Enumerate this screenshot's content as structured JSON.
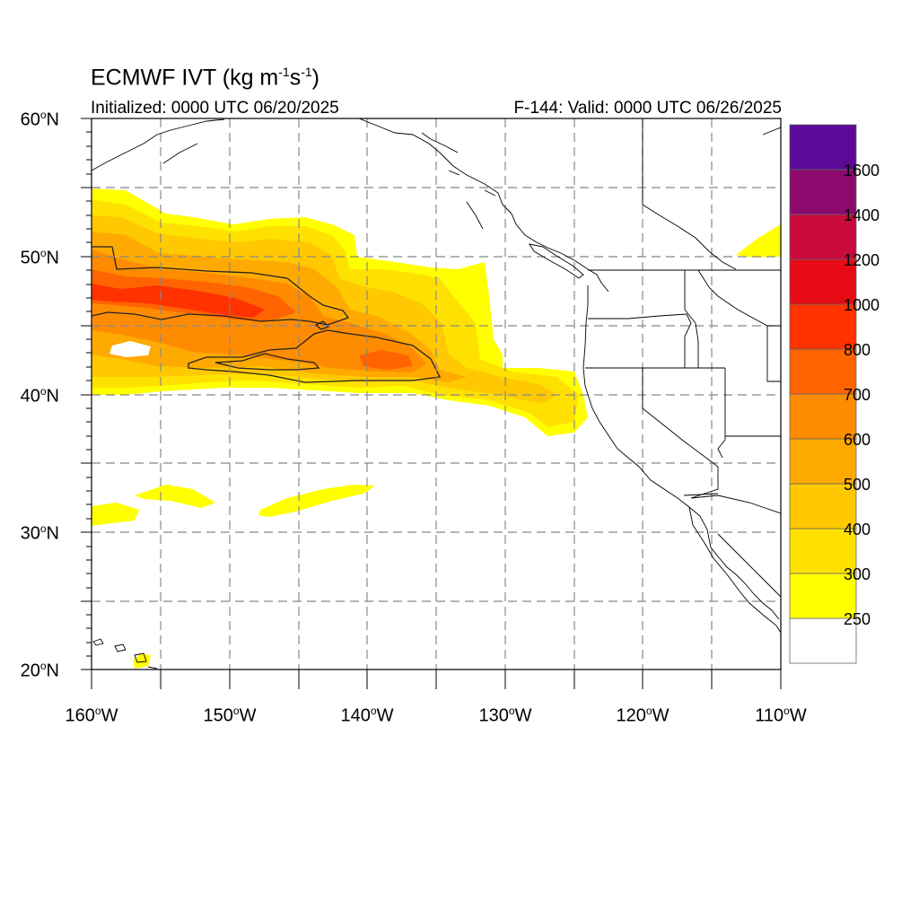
{
  "title": {
    "main": "ECMWF IVT (kg m",
    "exp1": "-1",
    "mid": "s",
    "exp2": "-1",
    "end": ")"
  },
  "subtitle": {
    "initialized": "Initialized: 0000 UTC 06/20/2025",
    "valid": "F-144: Valid: 0000 UTC 06/26/2025"
  },
  "map": {
    "extent": {
      "lon_min": -160,
      "lon_max": -110,
      "lat_min": 20,
      "lat_max": 60
    },
    "lat_labels": [
      {
        "lat": 60,
        "num": "60",
        "deg": "o",
        "hemi": "N"
      },
      {
        "lat": 50,
        "num": "50",
        "deg": "o",
        "hemi": "N"
      },
      {
        "lat": 40,
        "num": "40",
        "deg": "o",
        "hemi": "N"
      },
      {
        "lat": 30,
        "num": "30",
        "deg": "o",
        "hemi": "N"
      },
      {
        "lat": 20,
        "num": "20",
        "deg": "o",
        "hemi": "N"
      }
    ],
    "lon_labels": [
      {
        "lon": -160,
        "num": "160",
        "deg": "o",
        "hemi": "W"
      },
      {
        "lon": -150,
        "num": "150",
        "deg": "o",
        "hemi": "W"
      },
      {
        "lon": -140,
        "num": "140",
        "deg": "o",
        "hemi": "W"
      },
      {
        "lon": -130,
        "num": "130",
        "deg": "o",
        "hemi": "W"
      },
      {
        "lon": -120,
        "num": "120",
        "deg": "o",
        "hemi": "W"
      },
      {
        "lon": -110,
        "num": "110",
        "deg": "o",
        "hemi": "W"
      }
    ]
  },
  "colorbar": {
    "levels": [
      "250",
      "300",
      "400",
      "500",
      "600",
      "700",
      "800",
      "1000",
      "1200",
      "1400",
      "1600"
    ],
    "colors": [
      "#ffffff",
      "#ffff00",
      "#ffe100",
      "#ffc800",
      "#ffaa00",
      "#ff8c00",
      "#ff6400",
      "#ff3200",
      "#e60a14",
      "#c80a3c",
      "#8c0a6e",
      "#5a0a96"
    ]
  },
  "colors": {
    "ivt_250": "#ffff00",
    "ivt_300": "#ffe100",
    "ivt_400": "#ffc800",
    "ivt_500": "#ffaa00",
    "ivt_600": "#ff8c00",
    "ivt_700": "#ff6400",
    "ivt_800": "#ff3200",
    "grid": "#888888",
    "coast": "#000000"
  }
}
